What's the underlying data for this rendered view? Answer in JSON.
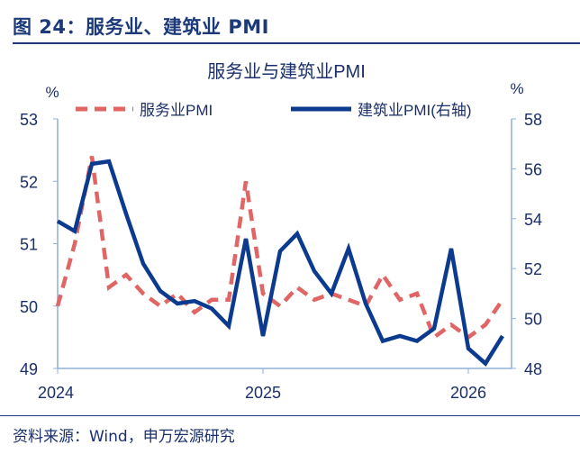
{
  "figure_title": "图 24：服务业、建筑业 PMI",
  "source": "资料来源：Wind，申万宏源研究",
  "colors": {
    "services": "#e06666",
    "construction": "#0b3a8f",
    "axis": "#8fb0d9",
    "text": "#1a2f6b"
  },
  "chart_data": {
    "type": "line",
    "title": "服务业与建筑业PMI",
    "ylabel_left": "%",
    "ylabel_right": "%",
    "ylim_left": [
      49,
      53
    ],
    "ylim_right": [
      48,
      58
    ],
    "yticks_left": [
      49,
      50,
      51,
      52,
      53
    ],
    "yticks_right": [
      48,
      50,
      52,
      54,
      56,
      58
    ],
    "xtick_labels": [
      {
        "label": "2024",
        "index": 0
      },
      {
        "label": "2025",
        "index": 12
      },
      {
        "label": "2026",
        "index": 24
      }
    ],
    "x": [
      "2024-01",
      "2024-02",
      "2024-03",
      "2024-04",
      "2024-05",
      "2024-06",
      "2024-07",
      "2024-08",
      "2024-09",
      "2024-10",
      "2024-11",
      "2024-12",
      "2025-01",
      "2025-02",
      "2025-03",
      "2025-04",
      "2025-05",
      "2025-06",
      "2025-07",
      "2025-08",
      "2025-09",
      "2025-10",
      "2025-11",
      "2025-12",
      "2026-01",
      "2026-02",
      "2026-03"
    ],
    "legend_position": "top",
    "series": [
      {
        "name": "服务业PMI",
        "axis": "left",
        "style": "dashed",
        "values": [
          50.0,
          51.0,
          52.4,
          50.3,
          50.5,
          50.2,
          50.0,
          50.2,
          49.9,
          50.1,
          50.1,
          52.0,
          50.2,
          50.0,
          50.3,
          50.1,
          50.2,
          50.1,
          50.0,
          50.5,
          50.1,
          50.2,
          49.5,
          49.7,
          49.5,
          49.7,
          50.1
        ]
      },
      {
        "name": "建筑业PMI(右轴)",
        "axis": "right",
        "style": "solid",
        "values": [
          53.9,
          53.5,
          56.2,
          56.3,
          54.2,
          52.2,
          51.1,
          50.6,
          50.7,
          50.4,
          49.7,
          53.2,
          49.3,
          52.7,
          53.4,
          51.9,
          51.0,
          52.8,
          50.6,
          49.1,
          49.3,
          49.1,
          49.6,
          52.8,
          48.8,
          48.2,
          49.3
        ]
      }
    ]
  }
}
